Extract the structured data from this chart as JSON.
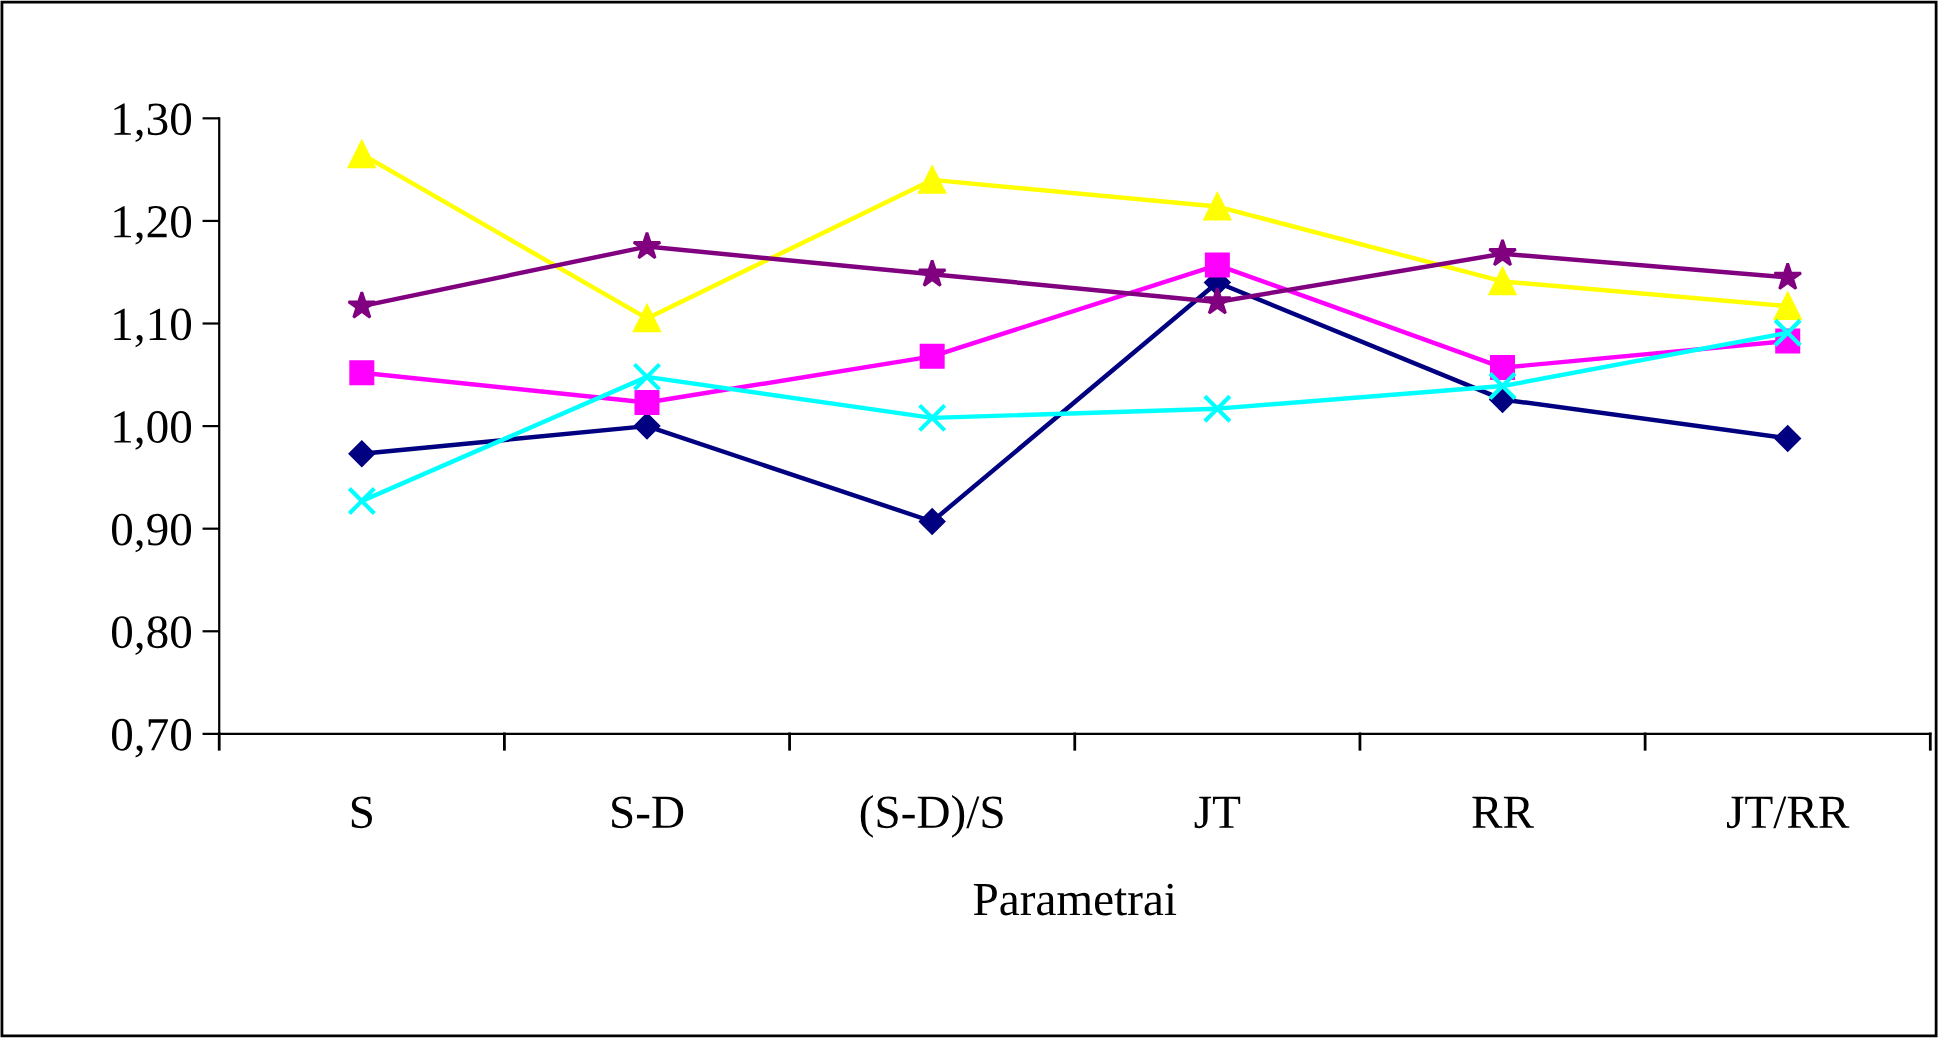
{
  "chart_data": {
    "type": "line",
    "xlabel": "Parametrai",
    "categories": [
      "S",
      "S-D",
      "(S-D)/S",
      "JT",
      "RR",
      "JT/RR"
    ],
    "series": [
      {
        "color": "#000080",
        "marker": "diamond",
        "values": [
          0.973,
          1.0,
          0.907,
          1.14,
          1.026,
          0.988
        ]
      },
      {
        "color": "#ff00ff",
        "marker": "square",
        "values": [
          1.052,
          1.023,
          1.068,
          1.157,
          1.057,
          1.083
        ]
      },
      {
        "color": "#ffff00",
        "marker": "triangle",
        "values": [
          1.265,
          1.105,
          1.24,
          1.214,
          1.141,
          1.117
        ]
      },
      {
        "color": "#00ffff",
        "marker": "cross",
        "values": [
          0.927,
          1.048,
          1.008,
          1.017,
          1.039,
          1.091
        ]
      },
      {
        "color": "#800080",
        "marker": "star",
        "values": [
          1.117,
          1.175,
          1.148,
          1.121,
          1.168,
          1.145
        ]
      }
    ],
    "ylim": [
      0.7,
      1.3
    ],
    "yticks": [
      {
        "value": 0.7,
        "label": "0,70"
      },
      {
        "value": 0.8,
        "label": "0,80"
      },
      {
        "value": 0.9,
        "label": "0,90"
      },
      {
        "value": 1.0,
        "label": "1,00"
      },
      {
        "value": 1.1,
        "label": "1,10"
      },
      {
        "value": 1.2,
        "label": "1,20"
      },
      {
        "value": 1.3,
        "label": "1,30"
      }
    ],
    "grid": false,
    "legend": false
  }
}
